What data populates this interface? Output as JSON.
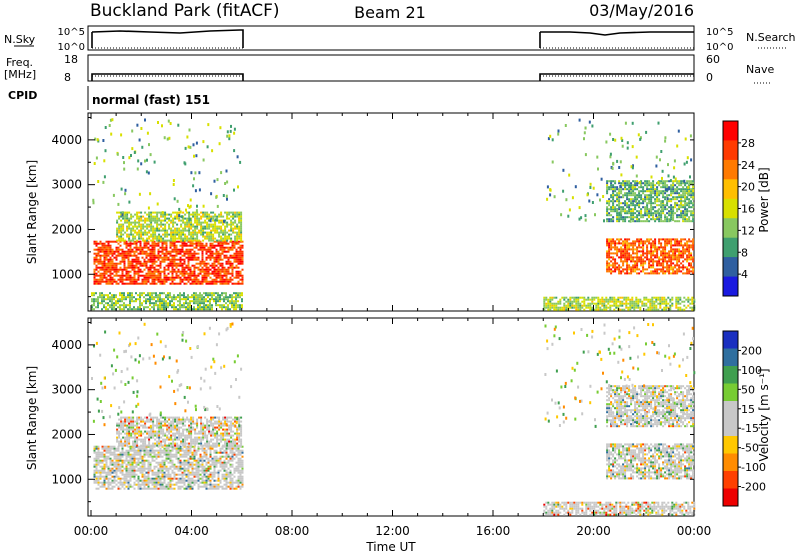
{
  "header": {
    "title": "Buckland Park (fitACF)",
    "beam": "Beam 21",
    "date": "03/May/2016"
  },
  "strips": {
    "nsky_label": "N.Sky",
    "nsky_ticks": [
      "10^5",
      "10^0"
    ],
    "nsearch_label": "N.Search",
    "nsearch_ticks": [
      "10^5",
      "10^0"
    ],
    "freq_label_1": "Freq.",
    "freq_label_2": "[MHz]",
    "freq_ticks": [
      "18",
      "8"
    ],
    "nave_label": "Nave",
    "nave_ticks": [
      "60",
      "0"
    ],
    "cpid_label": "CPID",
    "cpid_value": "normal (fast) 151"
  },
  "colorbars": {
    "power": {
      "label": "Power [dB]",
      "ticks": [
        "28",
        "24",
        "20",
        "16",
        "12",
        "8",
        "4"
      ],
      "colors": [
        "#ff0000",
        "#ff3a00",
        "#ff7a00",
        "#ffbf00",
        "#d8e000",
        "#88c860",
        "#3f9f6f",
        "#2f5fa0",
        "#1a1ae0"
      ]
    },
    "velocity": {
      "label": "Velocity [m s⁻¹]",
      "ticks": [
        "200",
        "100",
        "50",
        "15",
        "-15",
        "-50",
        "-100",
        "-200"
      ],
      "colors": [
        "#1a2fc0",
        "#2f6f9f",
        "#3f9f4f",
        "#77cc33",
        "#c8c8c8",
        "#c8c8c8",
        "#ffc800",
        "#ff8c00",
        "#ff4000",
        "#ee0000"
      ]
    }
  },
  "chart_data": [
    {
      "type": "heatmap",
      "name": "Power",
      "ylabel": "Slant Range [km]",
      "yticks": [
        1000,
        2000,
        3000,
        4000
      ],
      "xticks": [
        "00:00",
        "04:00",
        "08:00",
        "12:00",
        "16:00",
        "20:00",
        "00:00"
      ],
      "xlim_hours": [
        0,
        24
      ],
      "data_periods_hours": [
        [
          0,
          6
        ],
        [
          18,
          24
        ]
      ],
      "echo_regions": [
        {
          "hours": [
            0.1,
            6.0
          ],
          "range_km": [
            800,
            1750
          ],
          "power_db": 28
        },
        {
          "hours": [
            1.0,
            6.0
          ],
          "range_km": [
            1750,
            2400
          ],
          "power_db": 14
        },
        {
          "hours": [
            0.0,
            6.0
          ],
          "range_km": [
            200,
            600
          ],
          "power_db": 12
        },
        {
          "hours": [
            18.0,
            24.0
          ],
          "range_km": [
            200,
            500
          ],
          "power_db": 14
        },
        {
          "hours": [
            20.5,
            24.0
          ],
          "range_km": [
            1000,
            1800
          ],
          "power_db": 26
        },
        {
          "hours": [
            20.5,
            24.0
          ],
          "range_km": [
            2200,
            3100
          ],
          "power_db": 10
        }
      ]
    },
    {
      "type": "heatmap",
      "name": "Velocity",
      "ylabel": "Slant Range [km]",
      "yticks": [
        1000,
        2000,
        3000,
        4000
      ],
      "xticks": [
        "00:00",
        "04:00",
        "08:00",
        "12:00",
        "16:00",
        "20:00",
        "00:00"
      ],
      "xlabel": "Time UT",
      "xlim_hours": [
        0,
        24
      ],
      "data_periods_hours": [
        [
          0,
          6
        ],
        [
          18,
          24
        ]
      ],
      "echo_regions": [
        {
          "hours": [
            0.1,
            6.0
          ],
          "range_km": [
            800,
            1750
          ],
          "velocity_ms": 0
        },
        {
          "hours": [
            1.0,
            6.0
          ],
          "range_km": [
            1750,
            2400
          ],
          "velocity_ms": -30
        },
        {
          "hours": [
            18.0,
            24.0
          ],
          "range_km": [
            200,
            500
          ],
          "velocity_ms": -40
        },
        {
          "hours": [
            20.5,
            24.0
          ],
          "range_km": [
            1000,
            1800
          ],
          "velocity_ms": 0
        },
        {
          "hours": [
            20.5,
            24.0
          ],
          "range_km": [
            2200,
            3100
          ],
          "velocity_ms": 20
        }
      ]
    }
  ]
}
